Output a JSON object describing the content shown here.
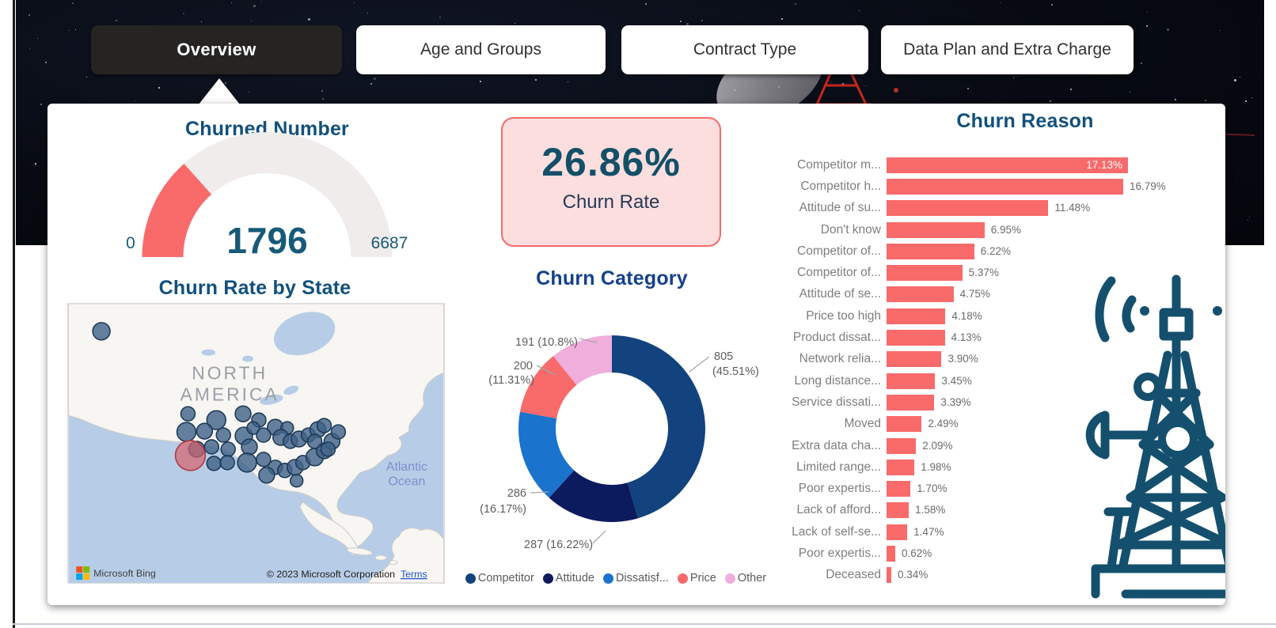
{
  "tabs": [
    {
      "label": "Overview",
      "active": true
    },
    {
      "label": "Age and Groups",
      "active": false
    },
    {
      "label": "Contract Type",
      "active": false
    },
    {
      "label": "Data Plan and Extra Charge",
      "active": false
    }
  ],
  "colors": {
    "accent_red": "#f96a6a",
    "title_blue": "#11507d",
    "donut_title_blue": "#15418a",
    "card_bg": "#fcdede",
    "card_border": "#f56a6a",
    "tab_active_bg": "#252423",
    "tower_icon": "#14506e",
    "gauge_track": "#efeceb",
    "map_water": "#b7cde7",
    "map_land": "#f8f6f2",
    "ms_logo": [
      "#f25022",
      "#7fba00",
      "#00a4ef",
      "#ffb900"
    ]
  },
  "chart_data": [
    {
      "id": "churned_gauge",
      "type": "gauge",
      "title": "Churned Number",
      "value": 1796,
      "min": 0,
      "max": 6687,
      "display": {
        "value": "1796",
        "min": "0",
        "max": "6687"
      },
      "fill_color": "#f96a6a",
      "track_color": "#efeceb"
    },
    {
      "id": "churn_rate_kpi",
      "type": "kpi-card",
      "value": "26.86%",
      "label": "Churn Rate"
    },
    {
      "id": "churn_category",
      "type": "donut",
      "title": "Churn Category",
      "legend_position": "bottom",
      "slices": [
        {
          "name": "Competitor",
          "value": 805,
          "pct": "45.51%",
          "color": "#12437f"
        },
        {
          "name": "Attitude",
          "value": 287,
          "pct": "16.22%",
          "color": "#0c1a5e"
        },
        {
          "name": "Dissatisf...",
          "value": 286,
          "pct": "16.17%",
          "color": "#1a73cd"
        },
        {
          "name": "Price",
          "value": 200,
          "pct": "11.31%",
          "color": "#f96a6a"
        },
        {
          "name": "Other",
          "value": 191,
          "pct": "10.8%",
          "color": "#f0aedd"
        }
      ],
      "callouts": [
        [
          "805",
          "(45.51%)"
        ],
        [
          "287 (16.22%)",
          ""
        ],
        [
          "286",
          "(16.17%)"
        ],
        [
          "200",
          "(11.31%)"
        ],
        [
          "191 (10.8%)",
          ""
        ]
      ]
    },
    {
      "id": "churn_reason",
      "type": "bar",
      "title": "Churn Reason",
      "orientation": "horizontal",
      "bar_color": "#f96a6a",
      "xlim": [
        0,
        17.5
      ],
      "categories": [
        "Competitor m...",
        "Competitor h...",
        "Attitude of su...",
        "Don't know",
        "Competitor of...",
        "Competitor of...",
        "Attitude of se...",
        "Price too high",
        "Product dissat...",
        "Network relia...",
        "Long distance...",
        "Service dissati...",
        "Moved",
        "Extra data cha...",
        "Limited range...",
        "Poor expertis...",
        "Lack of afford...",
        "Lack of self-se...",
        "Poor expertis...",
        "Deceased"
      ],
      "values": [
        17.13,
        16.79,
        11.48,
        6.95,
        6.22,
        5.37,
        4.75,
        4.18,
        4.13,
        3.9,
        3.45,
        3.39,
        2.49,
        2.09,
        1.98,
        1.7,
        1.58,
        1.47,
        0.62,
        0.34
      ],
      "value_labels": [
        "17.13%",
        "16.79%",
        "11.48%",
        "6.95%",
        "6.22%",
        "5.37%",
        "4.75%",
        "4.18%",
        "4.13%",
        "3.90%",
        "3.45%",
        "3.39%",
        "2.49%",
        "2.09%",
        "1.98%",
        "1.70%",
        "1.58%",
        "1.47%",
        "0.62%",
        "0.34%"
      ]
    },
    {
      "id": "churn_rate_map",
      "type": "map",
      "title": "Churn Rate by State",
      "provider": "Microsoft Bing",
      "region_label_lines": [
        "NORTH",
        "AMERICA"
      ],
      "ocean_label_lines": [
        "Atlantic",
        "Ocean"
      ],
      "attribution": "© 2023 Microsoft Corporation",
      "terms_label": "Terms",
      "bubble_fill": "#3f6287",
      "bubble_stroke": "#1d3a57",
      "highlight_fill": "#d4626b",
      "highlight_stroke": "#b03a44",
      "highlight_bubble": [
        155,
        193,
        19
      ],
      "bubbles": [
        [
          42,
          35,
          11
        ],
        [
          152,
          140,
          9
        ],
        [
          188,
          148,
          12
        ],
        [
          222,
          140,
          10
        ],
        [
          242,
          148,
          9
        ],
        [
          263,
          157,
          10
        ],
        [
          278,
          158,
          8
        ],
        [
          150,
          163,
          12
        ],
        [
          173,
          162,
          10
        ],
        [
          197,
          167,
          9
        ],
        [
          223,
          168,
          11
        ],
        [
          235,
          158,
          8
        ],
        [
          248,
          167,
          9
        ],
        [
          270,
          170,
          10
        ],
        [
          282,
          175,
          9
        ],
        [
          293,
          172,
          10
        ],
        [
          305,
          167,
          9
        ],
        [
          317,
          160,
          10
        ],
        [
          325,
          155,
          9
        ],
        [
          163,
          185,
          10
        ],
        [
          182,
          182,
          9
        ],
        [
          203,
          185,
          9
        ],
        [
          230,
          182,
          10
        ],
        [
          185,
          203,
          9
        ],
        [
          202,
          202,
          9
        ],
        [
          227,
          202,
          12
        ],
        [
          248,
          198,
          9
        ],
        [
          263,
          208,
          9
        ],
        [
          275,
          212,
          9
        ],
        [
          288,
          208,
          10
        ],
        [
          298,
          202,
          9
        ],
        [
          252,
          218,
          10
        ],
        [
          290,
          225,
          8
        ],
        [
          313,
          195,
          11
        ],
        [
          325,
          187,
          10
        ],
        [
          313,
          175,
          9
        ],
        [
          335,
          175,
          10
        ],
        [
          343,
          163,
          9
        ],
        [
          330,
          185,
          9
        ]
      ]
    }
  ]
}
